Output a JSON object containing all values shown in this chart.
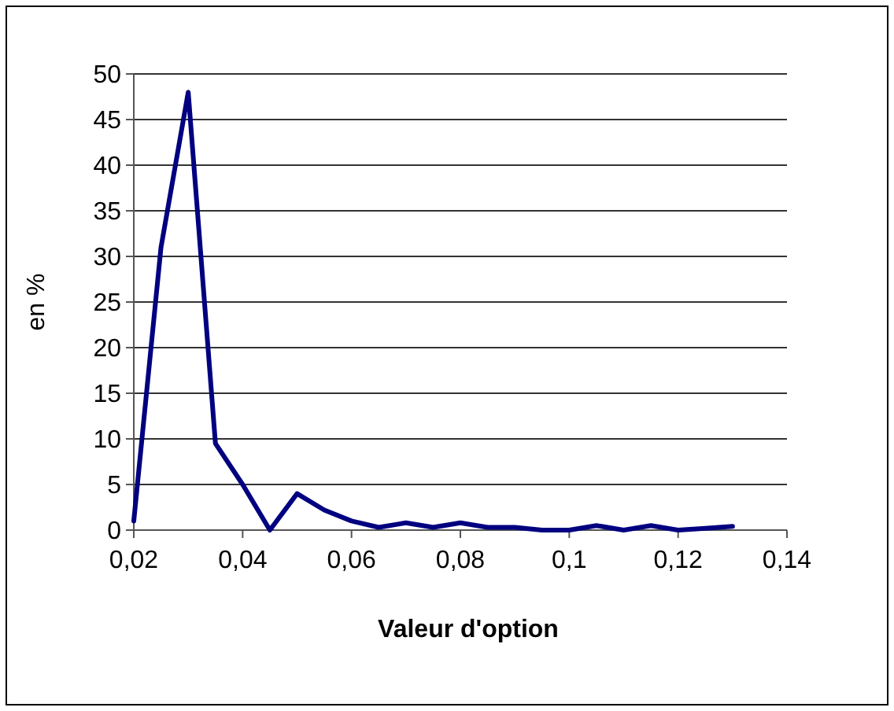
{
  "chart_data": {
    "type": "line",
    "xlabel": "Valeur d'option",
    "ylabel": "en %",
    "x": [
      0.02,
      0.025,
      0.03,
      0.035,
      0.04,
      0.045,
      0.05,
      0.055,
      0.06,
      0.065,
      0.07,
      0.075,
      0.08,
      0.085,
      0.09,
      0.095,
      0.1,
      0.105,
      0.11,
      0.115,
      0.12,
      0.125,
      0.13
    ],
    "series": [
      {
        "color": "#000080",
        "values": [
          1,
          31,
          48,
          9.5,
          5,
          0,
          4,
          2.2,
          1,
          0.3,
          0.8,
          0.3,
          0.8,
          0.3,
          0.3,
          0,
          0,
          0.5,
          0,
          0.5,
          0,
          0.2,
          0.4
        ]
      }
    ],
    "xlim": [
      0.02,
      0.14
    ],
    "xticks": [
      {
        "value": 0.02,
        "label": "0,02"
      },
      {
        "value": 0.04,
        "label": "0,04"
      },
      {
        "value": 0.06,
        "label": "0,06"
      },
      {
        "value": 0.08,
        "label": "0,08"
      },
      {
        "value": 0.1,
        "label": "0,1"
      },
      {
        "value": 0.12,
        "label": "0,12"
      },
      {
        "value": 0.14,
        "label": "0,14"
      }
    ],
    "ylim": [
      0,
      50
    ],
    "yticks": [
      0,
      5,
      10,
      15,
      20,
      25,
      30,
      35,
      40,
      45,
      50
    ],
    "grid": "y",
    "marker": "none",
    "line_style": "solid"
  }
}
